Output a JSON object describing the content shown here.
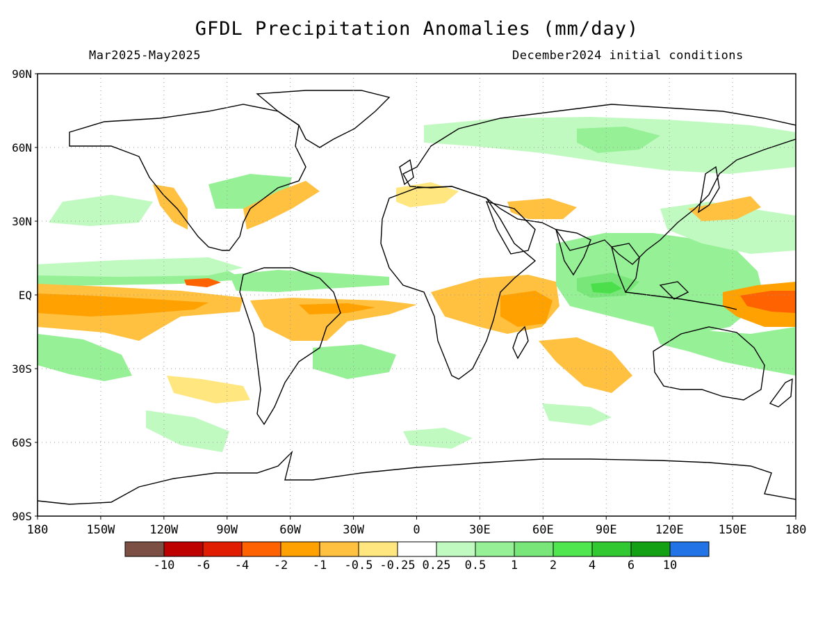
{
  "header": {
    "title": "GFDL Precipitation Anomalies (mm/day)",
    "period": "Mar2025-May2025",
    "init": "December2024 initial conditions"
  },
  "map": {
    "projection": "equirectangular",
    "lat_range": [
      -90,
      90
    ],
    "lon_range": [
      -180,
      180
    ],
    "grid": "dotted",
    "lat_labels": [
      "90N",
      "60N",
      "30N",
      "EQ",
      "30S",
      "60S",
      "90S"
    ],
    "lon_labels": [
      "180",
      "150W",
      "120W",
      "90W",
      "60W",
      "30W",
      "0",
      "30E",
      "60E",
      "90E",
      "120E",
      "150E",
      "180"
    ],
    "colors": {
      "land_outline": "#000000",
      "grid": "#9a9a9a",
      "dry_light": "#ffe67f",
      "dry_mid": "#ffc13f",
      "dry_strong": "#ffa100",
      "dry_heavy": "#ff6200",
      "wet_light": "#c0fac0",
      "wet_mid": "#96f096",
      "wet_strong": "#78e678",
      "wet_heavy": "#4be04b"
    }
  },
  "colorbar": {
    "colors": [
      "#7b4f43",
      "#bd0000",
      "#e01d00",
      "#ff6200",
      "#ffa100",
      "#ffc13f",
      "#ffe67f",
      "#ffffff",
      "#c0fac0",
      "#96f096",
      "#78e678",
      "#50e650",
      "#32c832",
      "#14a014",
      "#2274e6"
    ],
    "labels": [
      "-10",
      "-6",
      "-4",
      "-2",
      "-1",
      "-0.5",
      "-0.25",
      "0.25",
      "0.5",
      "1",
      "2",
      "4",
      "6",
      "10"
    ]
  }
}
